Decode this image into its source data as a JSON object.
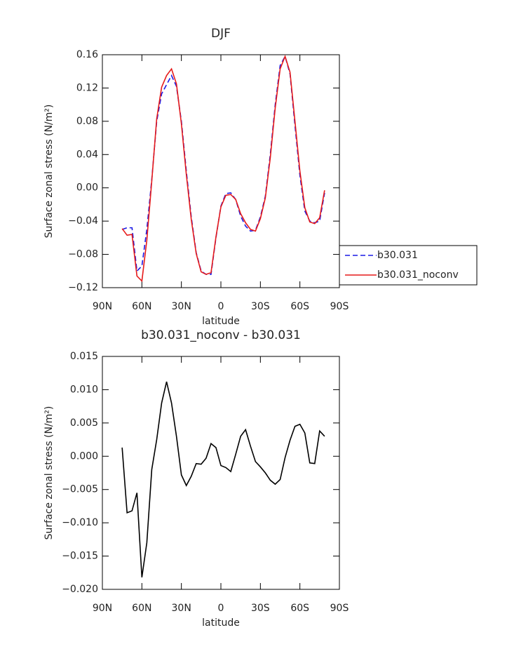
{
  "chart_data": [
    {
      "type": "line",
      "title": "DJF",
      "xlabel": "latitude",
      "ylabel": "Surface zonal stress (N/m²)",
      "x": [
        75,
        71.25,
        67.5,
        63.75,
        60,
        56.25,
        52.5,
        48.75,
        45,
        41.25,
        37.5,
        33.75,
        30,
        26.25,
        22.5,
        18.75,
        15,
        11.25,
        7.5,
        3.75,
        0,
        -3.75,
        -7.5,
        -11.25,
        -15,
        -18.75,
        -22.5,
        -26.25,
        -30,
        -33.75,
        -37.5,
        -41.25,
        -45,
        -48.75,
        -52.5,
        -56.25,
        -60,
        -63.75,
        -67.5,
        -71.25,
        -75,
        -78.75
      ],
      "series": [
        {
          "name": "b30.031",
          "color": "#1a1ae6",
          "line_style": "dashed",
          "values": [
            -0.05,
            -0.048,
            -0.048,
            -0.1,
            -0.094,
            -0.05,
            0.01,
            0.08,
            0.113,
            0.124,
            0.135,
            0.122,
            0.08,
            0.02,
            -0.035,
            -0.078,
            -0.1,
            -0.104,
            -0.104,
            -0.06,
            -0.022,
            -0.007,
            -0.006,
            -0.014,
            -0.034,
            -0.046,
            -0.052,
            -0.051,
            -0.035,
            -0.01,
            0.04,
            0.1,
            0.147,
            0.158,
            0.137,
            0.075,
            0.015,
            -0.028,
            -0.04,
            -0.042,
            -0.04,
            -0.006
          ]
        },
        {
          "name": "b30.031_noconv",
          "color": "#e61a1a",
          "line_style": "solid",
          "values": [
            -0.049,
            -0.057,
            -0.056,
            -0.106,
            -0.112,
            -0.063,
            0.008,
            0.083,
            0.121,
            0.135,
            0.143,
            0.125,
            0.077,
            0.016,
            -0.038,
            -0.079,
            -0.101,
            -0.104,
            -0.102,
            -0.059,
            -0.023,
            -0.009,
            -0.008,
            -0.014,
            -0.031,
            -0.042,
            -0.05,
            -0.052,
            -0.037,
            -0.012,
            0.036,
            0.096,
            0.143,
            0.158,
            0.139,
            0.08,
            0.02,
            -0.024,
            -0.041,
            -0.043,
            -0.036,
            -0.003
          ]
        }
      ],
      "xlim": [
        90,
        -90
      ],
      "xticks": [
        {
          "value": 90,
          "label": "90N"
        },
        {
          "value": 60,
          "label": "60N"
        },
        {
          "value": 30,
          "label": "30N"
        },
        0,
        {
          "value": -30,
          "label": "30S"
        },
        {
          "value": -60,
          "label": "60S"
        },
        {
          "value": -90,
          "label": "90S"
        }
      ],
      "ylim": [
        -0.12,
        0.16
      ],
      "yticks": [
        {
          "value": -0.12,
          "label": "−0.12"
        },
        {
          "value": -0.08,
          "label": "−0.08"
        },
        {
          "value": -0.04,
          "label": "−0.04"
        },
        {
          "value": 0,
          "label": "0.00"
        },
        0.04,
        0.08,
        0.12,
        0.16
      ],
      "legend": "outside-right"
    },
    {
      "type": "line",
      "title": "b30.031_noconv - b30.031",
      "xlabel": "latitude",
      "ylabel": "Surface zonal stress (N/m²)",
      "x": [
        75,
        71.25,
        67.5,
        63.75,
        60,
        56.25,
        52.5,
        48.75,
        45,
        41.25,
        37.5,
        33.75,
        30,
        26.25,
        22.5,
        18.75,
        15,
        11.25,
        7.5,
        3.75,
        0,
        -3.75,
        -7.5,
        -11.25,
        -15,
        -18.75,
        -22.5,
        -26.25,
        -30,
        -33.75,
        -37.5,
        -41.25,
        -45,
        -48.75,
        -52.5,
        -56.25,
        -60,
        -63.75,
        -67.5,
        -71.25,
        -75,
        -78.75
      ],
      "color": "#000000",
      "values": [
        0.0013,
        -0.0085,
        -0.0082,
        -0.0055,
        -0.0182,
        -0.013,
        -0.002,
        0.0025,
        0.008,
        0.0112,
        0.008,
        0.003,
        -0.0028,
        -0.0044,
        -0.003,
        -0.0011,
        -0.0012,
        -0.0003,
        0.0019,
        0.0013,
        -0.0014,
        -0.0017,
        -0.0023,
        0.0003,
        0.003,
        0.004,
        0.0015,
        -0.0008,
        -0.0016,
        -0.0025,
        -0.0036,
        -0.0042,
        -0.0035,
        -0.0002,
        0.0024,
        0.0045,
        0.0048,
        0.0035,
        -0.001,
        -0.0011,
        0.0038,
        0.003
      ],
      "xlim": [
        90,
        -90
      ],
      "xticks": [
        {
          "value": 90,
          "label": "90N"
        },
        {
          "value": 60,
          "label": "60N"
        },
        {
          "value": 30,
          "label": "30N"
        },
        0,
        {
          "value": -30,
          "label": "30S"
        },
        {
          "value": -60,
          "label": "60S"
        },
        {
          "value": -90,
          "label": "90S"
        }
      ],
      "ylim": [
        -0.02,
        0.015
      ],
      "yticks": [
        {
          "value": -0.02,
          "label": "−0.020"
        },
        {
          "value": -0.015,
          "label": "−0.015"
        },
        {
          "value": -0.01,
          "label": "−0.010"
        },
        {
          "value": -0.005,
          "label": "−0.005"
        },
        {
          "value": 0,
          "label": "0.000"
        },
        0.005,
        {
          "value": 0.01,
          "label": "0.010"
        },
        0.015
      ]
    }
  ]
}
